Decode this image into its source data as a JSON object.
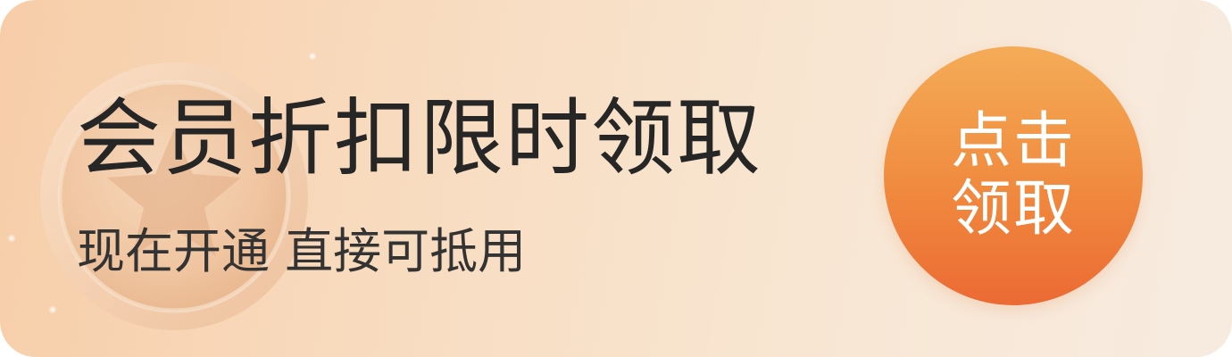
{
  "banner": {
    "title": "会员折扣限时领取",
    "subtitle": "现在开通 直接可抵用",
    "cta": {
      "line1": "点击",
      "line2": "领取"
    }
  },
  "colors": {
    "background_start": "#f7cda8",
    "background_end": "#f7ebe0",
    "cta_top": "#f4ac57",
    "cta_bottom": "#ec6a34",
    "title_text": "#262626",
    "cta_text": "#ffffff"
  },
  "icons": {
    "decoration": "star-coin-icon"
  }
}
